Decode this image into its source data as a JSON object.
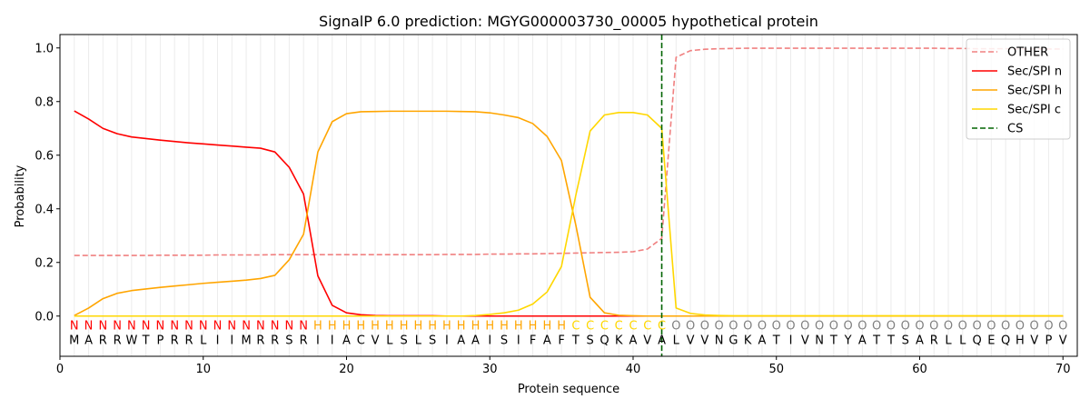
{
  "chart_data": {
    "type": "line",
    "title": "SignalP 6.0 prediction: MGYG000003730_00005 hypothetical protein",
    "xlabel": "Protein sequence",
    "ylabel": "Probability",
    "xlim": [
      0,
      71
    ],
    "ylim": [
      -0.15,
      1.05
    ],
    "x_ticks": [
      0,
      10,
      20,
      30,
      40,
      50,
      60,
      70
    ],
    "y_ticks": [
      0.0,
      0.2,
      0.4,
      0.6,
      0.8,
      1.0
    ],
    "x_tick_labels": [
      "0",
      "10",
      "20",
      "30",
      "40",
      "50",
      "60",
      "70"
    ],
    "y_tick_labels": [
      "0.0",
      "0.2",
      "0.4",
      "0.6",
      "0.8",
      "1.0"
    ],
    "grid": "vertical lines at each residue",
    "legend_position": "top-right",
    "sequence": "MARRWTPRRLIIMRRSRIIACVLSLSIAAISIFAFTSQKAVALVVNGKATIVNTYATTSARLLQEQHVPV",
    "labels": "NNNNNNNNNNNNNNNNNHHHHHHHHHHHHHHHHHHCCCCCCCOOOOOOOOOOOOOOOOOOOOOOOOOOOO",
    "label_colors": {
      "N": "#ff0000",
      "H": "#ffa500",
      "C": "#ffd700",
      "O": "#808080"
    },
    "cleavage_site": 42,
    "series": [
      {
        "name": "OTHER",
        "color": "#f08080",
        "dash": "dashed",
        "values": [
          0.226,
          0.226,
          0.226,
          0.226,
          0.226,
          0.226,
          0.227,
          0.227,
          0.227,
          0.227,
          0.228,
          0.228,
          0.228,
          0.228,
          0.229,
          0.229,
          0.229,
          0.229,
          0.229,
          0.229,
          0.229,
          0.229,
          0.229,
          0.229,
          0.229,
          0.229,
          0.23,
          0.23,
          0.23,
          0.231,
          0.231,
          0.232,
          0.232,
          0.233,
          0.234,
          0.235,
          0.236,
          0.237,
          0.238,
          0.24,
          0.25,
          0.29,
          0.965,
          0.99,
          0.995,
          0.997,
          0.998,
          0.999,
          0.999,
          0.999,
          0.999,
          0.999,
          0.999,
          0.999,
          0.999,
          0.999,
          0.999,
          0.999,
          0.999,
          0.999,
          0.999,
          0.998,
          0.998,
          0.997,
          0.997,
          0.997,
          0.996,
          0.996,
          0.996,
          0.996
        ]
      },
      {
        "name": "Sec/SPI n",
        "color": "#ff0000",
        "dash": "solid",
        "values": [
          0.765,
          0.735,
          0.7,
          0.68,
          0.668,
          0.662,
          0.656,
          0.651,
          0.646,
          0.642,
          0.638,
          0.634,
          0.63,
          0.626,
          0.612,
          0.555,
          0.455,
          0.15,
          0.04,
          0.012,
          0.005,
          0.002,
          0.001,
          0.001,
          0.001,
          0.001,
          0.0,
          0.0,
          0.0,
          0.0,
          0.0,
          0.0,
          0.0,
          0.0,
          0.0,
          0.0,
          0.0,
          0.0,
          0.0,
          0.0,
          0.0,
          0.0,
          0.0,
          0.0,
          0.0,
          0.0,
          0.0,
          0.0,
          0.0,
          0.0,
          0.0,
          0.0,
          0.0,
          0.0,
          0.0,
          0.0,
          0.0,
          0.0,
          0.0,
          0.0,
          0.0,
          0.0,
          0.0,
          0.0,
          0.0,
          0.0,
          0.0,
          0.0,
          0.0,
          0.0
        ]
      },
      {
        "name": "Sec/SPI h",
        "color": "#ffa500",
        "dash": "solid",
        "values": [
          0.002,
          0.03,
          0.065,
          0.085,
          0.095,
          0.101,
          0.107,
          0.112,
          0.117,
          0.122,
          0.126,
          0.13,
          0.134,
          0.14,
          0.152,
          0.21,
          0.305,
          0.612,
          0.725,
          0.755,
          0.762,
          0.763,
          0.764,
          0.764,
          0.764,
          0.764,
          0.764,
          0.763,
          0.762,
          0.758,
          0.75,
          0.74,
          0.718,
          0.67,
          0.58,
          0.34,
          0.07,
          0.012,
          0.003,
          0.001,
          0.0,
          0.0,
          0.0,
          0.0,
          0.0,
          0.0,
          0.0,
          0.0,
          0.0,
          0.0,
          0.0,
          0.0,
          0.0,
          0.0,
          0.0,
          0.0,
          0.0,
          0.0,
          0.0,
          0.0,
          0.0,
          0.0,
          0.0,
          0.0,
          0.0,
          0.0,
          0.0,
          0.0,
          0.0,
          0.0
        ]
      },
      {
        "name": "Sec/SPI c",
        "color": "#ffd700",
        "dash": "solid",
        "values": [
          0.0,
          0.0,
          0.0,
          0.0,
          0.0,
          0.0,
          0.0,
          0.0,
          0.0,
          0.0,
          0.0,
          0.0,
          0.0,
          0.0,
          0.0,
          0.0,
          0.0,
          0.0,
          0.0,
          0.0,
          0.0,
          0.0,
          0.0,
          0.0,
          0.0,
          0.0,
          0.0,
          0.0,
          0.002,
          0.006,
          0.012,
          0.022,
          0.045,
          0.09,
          0.185,
          0.45,
          0.69,
          0.75,
          0.759,
          0.759,
          0.75,
          0.7,
          0.03,
          0.01,
          0.004,
          0.002,
          0.001,
          0.001,
          0.001,
          0.001,
          0.001,
          0.001,
          0.001,
          0.001,
          0.001,
          0.001,
          0.001,
          0.001,
          0.001,
          0.001,
          0.001,
          0.001,
          0.001,
          0.001,
          0.001,
          0.001,
          0.001,
          0.001,
          0.001,
          0.001
        ]
      },
      {
        "name": "CS",
        "color": "#006400",
        "dash": "dashed",
        "values": []
      }
    ]
  }
}
